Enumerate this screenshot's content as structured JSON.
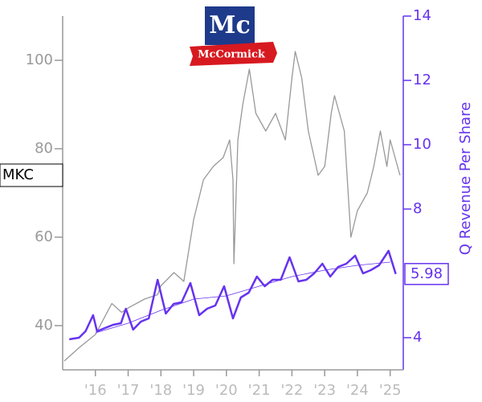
{
  "chart_data": {
    "type": "line",
    "logo_text": "McCormick",
    "y2label": "Q Revenue Per Share",
    "xlim": [
      2015.0,
      2025.4
    ],
    "xticks": [
      {
        "value": 2016,
        "label": "'16"
      },
      {
        "value": 2017,
        "label": "'17"
      },
      {
        "value": 2018,
        "label": "'18"
      },
      {
        "value": 2019,
        "label": "'19"
      },
      {
        "value": 2020,
        "label": "'20"
      },
      {
        "value": 2021,
        "label": "'21"
      },
      {
        "value": 2022,
        "label": "'22"
      },
      {
        "value": 2023,
        "label": "'23"
      },
      {
        "value": 2024,
        "label": "'24"
      },
      {
        "value": 2025,
        "label": "'25"
      }
    ],
    "ylim": [
      30,
      110
    ],
    "yticks": [
      40,
      60,
      80,
      100
    ],
    "y2lim": [
      3,
      14
    ],
    "y2ticks": [
      4,
      8,
      10,
      12,
      14
    ],
    "series": [
      {
        "name": "MKC",
        "color": "#999999",
        "axis": "y",
        "x": [
          2015.05,
          2015.5,
          2016.0,
          2016.5,
          2016.8,
          2017.0,
          2017.5,
          2017.9,
          2018.0,
          2018.4,
          2018.7,
          2019.0,
          2019.3,
          2019.6,
          2019.9,
          2020.1,
          2020.2,
          2020.23,
          2020.35,
          2020.5,
          2020.7,
          2020.9,
          2021.2,
          2021.5,
          2021.8,
          2022.0,
          2022.1,
          2022.3,
          2022.5,
          2022.8,
          2023.0,
          2023.2,
          2023.3,
          2023.6,
          2023.8,
          2024.0,
          2024.3,
          2024.5,
          2024.7,
          2024.9,
          2025.0,
          2025.3
        ],
        "values": [
          32,
          35,
          38,
          45,
          43,
          44,
          46,
          47,
          49,
          52,
          50,
          64,
          73,
          76,
          78,
          82,
          73,
          54,
          82,
          90,
          98,
          88,
          84,
          88,
          82,
          96,
          102,
          96,
          84,
          74,
          76,
          88,
          92,
          84,
          60,
          66,
          70,
          76,
          84,
          76,
          82,
          74
        ]
      },
      {
        "color": "#6633ee",
        "axis": "y2",
        "x": [
          2015.2,
          2015.5,
          2015.7,
          2015.93,
          2016.05,
          2016.29,
          2016.54,
          2016.78,
          2016.93,
          2017.15,
          2017.39,
          2017.63,
          2017.9,
          2018.15,
          2018.39,
          2018.63,
          2018.9,
          2019.17,
          2019.41,
          2019.66,
          2019.93,
          2020.2,
          2020.44,
          2020.68,
          2020.93,
          2021.17,
          2021.41,
          2021.66,
          2021.93,
          2022.2,
          2022.44,
          2022.68,
          2022.93,
          2023.17,
          2023.41,
          2023.66,
          2023.93,
          2024.17,
          2024.41,
          2024.66,
          2024.95,
          2025.17
        ],
        "values": [
          3.95,
          4.0,
          4.2,
          4.7,
          4.2,
          4.3,
          4.4,
          4.45,
          4.9,
          4.25,
          4.5,
          4.6,
          5.8,
          4.75,
          5.05,
          5.1,
          5.7,
          4.7,
          4.9,
          5.0,
          5.6,
          4.6,
          5.25,
          5.4,
          5.9,
          5.6,
          5.8,
          5.8,
          6.5,
          5.75,
          5.8,
          6.0,
          6.3,
          5.9,
          6.2,
          6.3,
          6.55,
          6.0,
          6.1,
          6.25,
          6.7,
          5.98
        ],
        "value_labels": [
          null,
          null,
          null,
          null,
          null,
          null,
          null,
          null,
          null,
          null,
          null,
          null,
          null,
          null,
          null,
          null,
          null,
          null,
          null,
          null,
          null,
          null,
          null,
          null,
          null,
          null,
          null,
          null,
          null,
          null,
          null,
          null,
          null,
          null,
          null,
          null,
          null,
          null,
          null,
          null,
          null,
          "5.98"
        ]
      },
      {
        "color": "#6633ee",
        "axis": "y2",
        "thin": true,
        "x": [
          2016.0,
          2017.0,
          2018.0,
          2019.0,
          2020.0,
          2021.0,
          2022.0,
          2023.0,
          2024.0,
          2025.0
        ],
        "values": [
          4.15,
          4.45,
          4.85,
          5.2,
          5.3,
          5.6,
          5.9,
          6.1,
          6.25,
          6.35
        ]
      }
    ]
  }
}
